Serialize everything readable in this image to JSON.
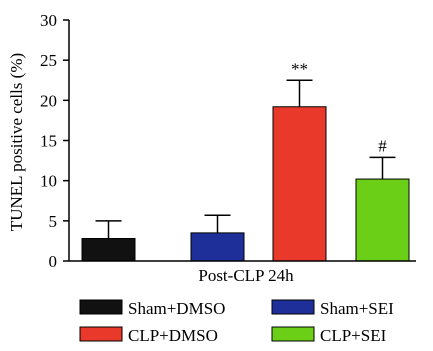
{
  "chart_data": {
    "type": "bar",
    "ylabel": "TUNEL positive cells (%)",
    "xlabel": "Post-CLP 24h",
    "ylim": [
      0,
      30
    ],
    "yticks": [
      0,
      5,
      10,
      15,
      20,
      25,
      30
    ],
    "grid": false,
    "legend_position": "bottom",
    "categories": [
      "Sham+DMSO",
      "Sham+SEI",
      "CLP+DMSO",
      "CLP+SEI"
    ],
    "values": [
      2.8,
      3.5,
      19.2,
      10.2
    ],
    "errors": [
      2.2,
      2.2,
      3.3,
      2.7
    ],
    "annotations": [
      "",
      "",
      "**",
      "#"
    ],
    "colors": [
      "#111111",
      "#1e2f9a",
      "#e8392b",
      "#6ccf17"
    ]
  }
}
